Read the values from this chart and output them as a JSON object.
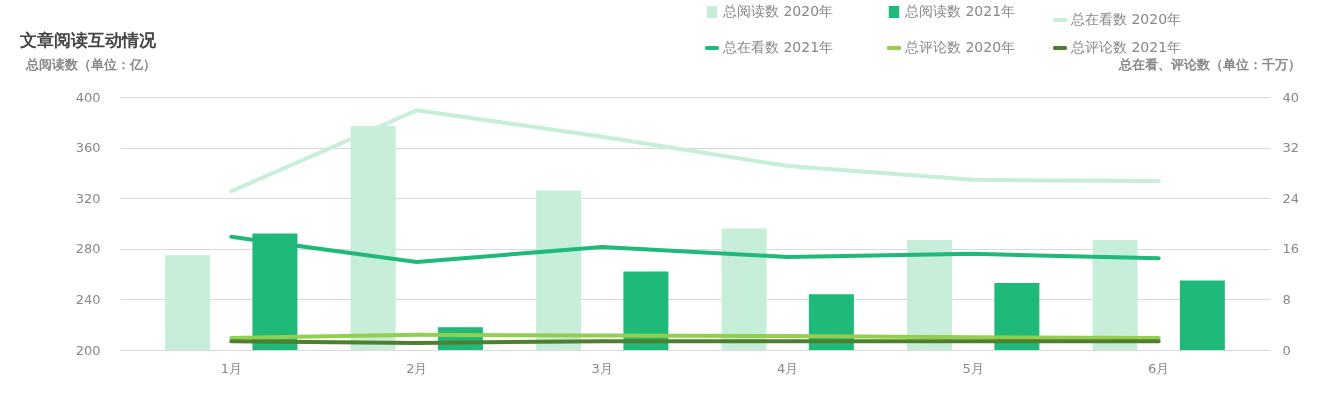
{
  "chart_data": {
    "type": "bar",
    "title": "文章阅读互动情况",
    "ylabel": "总阅读数（单位：亿）",
    "y2label": "总在看、评论数（单位：千万）",
    "categories": [
      "1月",
      "2月",
      "3月",
      "4月",
      "5月",
      "6月"
    ],
    "series": [
      {
        "name": "总阅读数 2020年",
        "color": "#c6eed8",
        "values": [
          275,
          377,
          326,
          296,
          287,
          287
        ]
      },
      {
        "name": "总阅读数 2021年",
        "color": "#1fb97a",
        "values": [
          292,
          218,
          262,
          244,
          253,
          255
        ]
      },
      {
        "name": "总在看数 2020年",
        "type": "line",
        "axis": "y2",
        "color": "#c6eed8",
        "values": [
          25.1,
          37.9,
          33.7,
          29.1,
          26.9,
          26.7
        ]
      },
      {
        "name": "总在看数 2021年",
        "type": "line",
        "axis": "y2",
        "color": "#1fb97a",
        "values": [
          17.9,
          13.9,
          16.3,
          14.7,
          15.2,
          14.5
        ]
      },
      {
        "name": "总评论数 2020年",
        "type": "line",
        "axis": "y2",
        "color": "#92cf4f",
        "values": [
          1.9,
          2.4,
          2.3,
          2.2,
          2.0,
          1.9
        ]
      },
      {
        "name": "总评论数 2021年",
        "type": "line",
        "axis": "y2",
        "color": "#4d7f2f",
        "values": [
          1.4,
          1.1,
          1.4,
          1.4,
          1.4,
          1.4
        ]
      }
    ],
    "ylim": [
      200,
      400
    ],
    "yticks": [
      200,
      240,
      280,
      320,
      360,
      400
    ],
    "y2lim": [
      0,
      40
    ],
    "y2ticks": [
      0,
      8,
      16,
      24,
      32,
      40
    ],
    "grid": "y",
    "legend": "top right",
    "marker": "none"
  }
}
